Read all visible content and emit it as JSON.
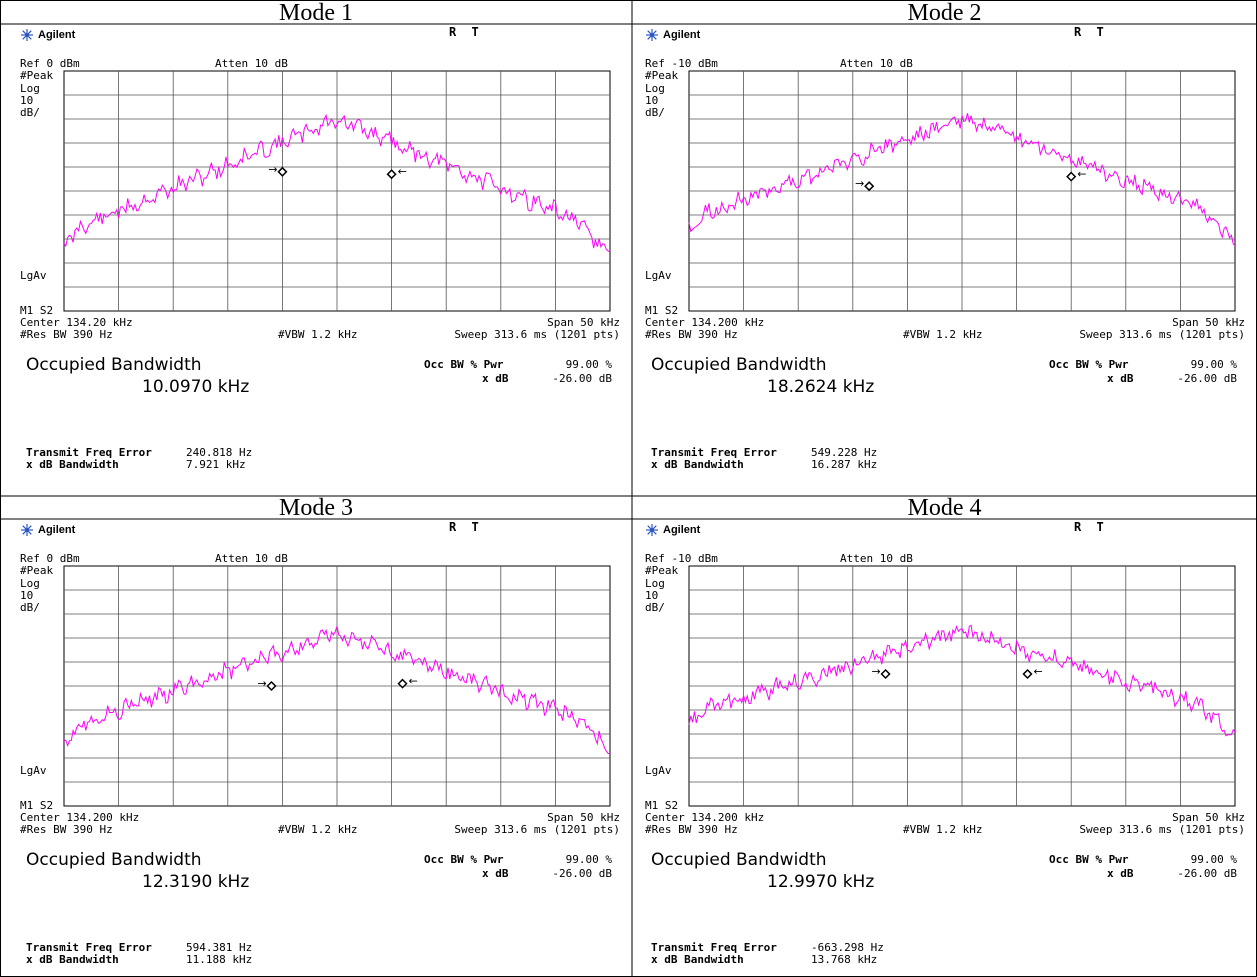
{
  "panels": [
    {
      "title": "Mode 1",
      "brand": "Agilent",
      "status_indicators": "R T",
      "ref": "Ref 0 dBm",
      "atten": "Atten 10 dB",
      "detector": "#Peak",
      "scale_type": "Log",
      "scale_value": "10",
      "scale_unit": "dB/",
      "avg_mode": "LgAv",
      "marker_mode": "M1 S2",
      "center": "Center 134.20 kHz",
      "span": "Span 50 kHz",
      "res_bw": "#Res BW 390 Hz",
      "vbw": "#VBW 1.2 kHz",
      "sweep": "Sweep 313.6 ms (1201 pts)",
      "measurement_title": "Occupied Bandwidth",
      "occupied_bandwidth": "10.0970 kHz",
      "occ_bw_pwr_label": "Occ BW % Pwr",
      "occ_bw_pwr_value": "99.00 %",
      "x_db_label": "x dB",
      "x_db_value": "-26.00 dB",
      "tx_freq_error_label": "Transmit Freq Error",
      "tx_freq_error_value": "240.818 Hz",
      "x_db_bw_label": "x dB Bandwidth",
      "x_db_bw_value": "7.921 kHz",
      "trace_color": "#ff00ff",
      "trace": {
        "peak_pos": 0.5,
        "peak_level": 0.2,
        "floor": 0.68,
        "seed": 11,
        "left_marker": 0.4,
        "right_marker": 0.6,
        "left_marker_level": 0.42,
        "right_marker_level": 0.43
      }
    },
    {
      "title": "Mode 2",
      "brand": "Agilent",
      "status_indicators": "R T",
      "ref": "Ref -10 dBm",
      "atten": "Atten 10 dB",
      "detector": "#Peak",
      "scale_type": "Log",
      "scale_value": "10",
      "scale_unit": "dB/",
      "avg_mode": "LgAv",
      "marker_mode": "M1 S2",
      "center": "Center 134.200 kHz",
      "span": "Span 50 kHz",
      "res_bw": "#Res BW 390 Hz",
      "vbw": "#VBW 1.2 kHz",
      "sweep": "Sweep 313.6 ms (1201 pts)",
      "measurement_title": "Occupied Bandwidth",
      "occupied_bandwidth": "18.2624 kHz",
      "occ_bw_pwr_label": "Occ BW % Pwr",
      "occ_bw_pwr_value": "99.00 %",
      "x_db_label": "x dB",
      "x_db_value": "-26.00 dB",
      "tx_freq_error_label": "Transmit Freq Error",
      "tx_freq_error_value": "549.228 Hz",
      "x_db_bw_label": "x dB Bandwidth",
      "x_db_bw_value": "16.287 kHz",
      "trace_color": "#ff00ff",
      "trace": {
        "peak_pos": 0.5,
        "peak_level": 0.2,
        "floor": 0.62,
        "seed": 23,
        "left_marker": 0.33,
        "right_marker": 0.7,
        "left_marker_level": 0.48,
        "right_marker_level": 0.44
      }
    },
    {
      "title": "Mode 3",
      "brand": "Agilent",
      "status_indicators": "R T",
      "ref": "Ref 0 dBm",
      "atten": "Atten 10 dB",
      "detector": "#Peak",
      "scale_type": "Log",
      "scale_value": "10",
      "scale_unit": "dB/",
      "avg_mode": "LgAv",
      "marker_mode": "M1 S2",
      "center": "Center 134.200 kHz",
      "span": "Span 50 kHz",
      "res_bw": "#Res BW 390 Hz",
      "vbw": "#VBW 1.2 kHz",
      "sweep": "Sweep 313.6 ms (1201 pts)",
      "measurement_title": "Occupied Bandwidth",
      "occupied_bandwidth": "12.3190 kHz",
      "occ_bw_pwr_label": "Occ BW % Pwr",
      "occ_bw_pwr_value": "99.00 %",
      "x_db_label": "x dB",
      "x_db_value": "-26.00 dB",
      "tx_freq_error_label": "Transmit Freq Error",
      "tx_freq_error_value": "594.381 Hz",
      "x_db_bw_label": "x dB Bandwidth",
      "x_db_bw_value": "11.188 kHz",
      "trace_color": "#ff00ff",
      "trace": {
        "peak_pos": 0.5,
        "peak_level": 0.28,
        "floor": 0.68,
        "seed": 37,
        "left_marker": 0.38,
        "right_marker": 0.62,
        "left_marker_level": 0.5,
        "right_marker_level": 0.49
      }
    },
    {
      "title": "Mode 4",
      "brand": "Agilent",
      "status_indicators": "R T",
      "ref": "Ref -10 dBm",
      "atten": "Atten 10 dB",
      "detector": "#Peak",
      "scale_type": "Log",
      "scale_value": "10",
      "scale_unit": "dB/",
      "avg_mode": "LgAv",
      "marker_mode": "M1 S2",
      "center": "Center 134.200 kHz",
      "span": "Span 50 kHz",
      "res_bw": "#Res BW 390 Hz",
      "vbw": "#VBW 1.2 kHz",
      "sweep": "Sweep 313.6 ms (1201 pts)",
      "measurement_title": "Occupied Bandwidth",
      "occupied_bandwidth": "12.9970 kHz",
      "occ_bw_pwr_label": "Occ BW % Pwr",
      "occ_bw_pwr_value": "99.00 %",
      "x_db_label": "x dB",
      "x_db_value": "-26.00 dB",
      "tx_freq_error_label": "Transmit Freq Error",
      "tx_freq_error_value": "-663.298 Hz",
      "x_db_bw_label": "x dB Bandwidth",
      "x_db_bw_value": "13.768 kHz",
      "trace_color": "#ff00ff",
      "trace": {
        "peak_pos": 0.5,
        "peak_level": 0.27,
        "floor": 0.62,
        "seed": 53,
        "left_marker": 0.36,
        "right_marker": 0.62,
        "left_marker_level": 0.45,
        "right_marker_level": 0.45
      }
    }
  ]
}
